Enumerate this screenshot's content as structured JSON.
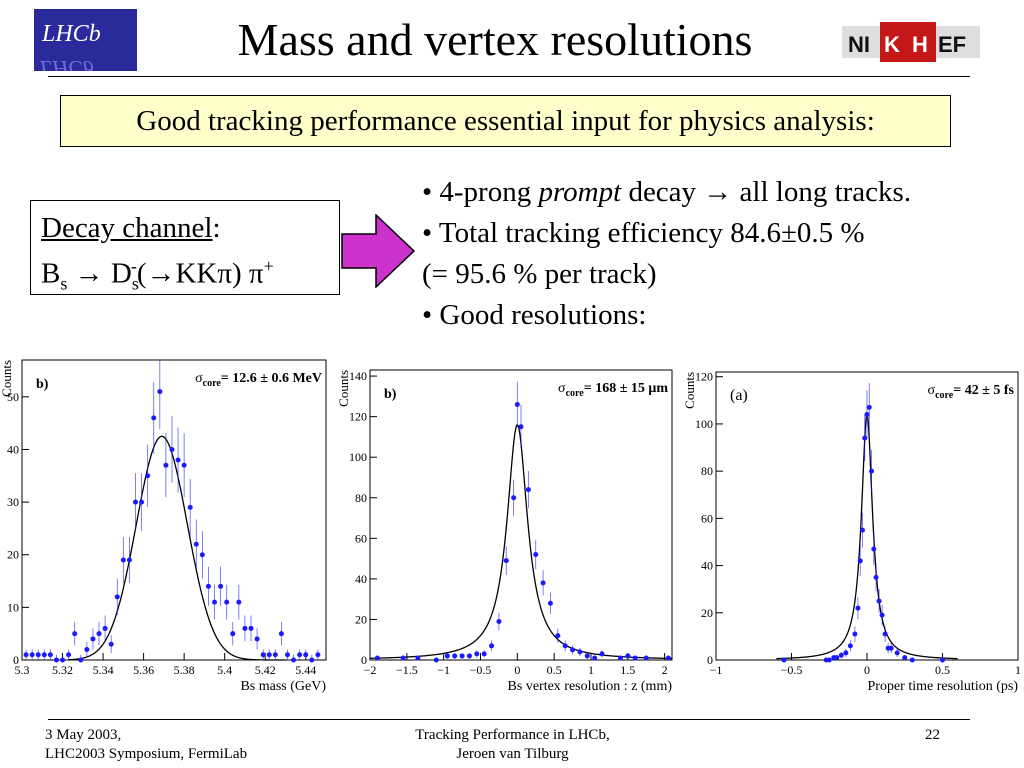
{
  "slide": {
    "title": "Mass and vertex resolutions",
    "highlight": "Good tracking performance essential input for physics analysis:",
    "logos": {
      "left": "LHCb",
      "right": "NIKHEF"
    },
    "decay_box": {
      "heading": "Decay channel",
      "heading_suffix": ":",
      "channel": {
        "b": "B",
        "b_sub": "s",
        "arrow": " → D",
        "ds_sub": "s",
        "ds_sup": "-",
        "rest": "(→KKπ) π",
        "pi_sup": "+"
      }
    },
    "bullets": [
      {
        "pre": "• 4-prong ",
        "em": "prompt",
        "post": " decay → all long tracks."
      },
      {
        "text": "• Total tracking efficiency 84.6±0.5 %"
      },
      {
        "text": " (= 95.6 % per track)"
      },
      {
        "text": "• Good resolutions:"
      }
    ],
    "arrow_color": "#cc33cc"
  },
  "footer": {
    "left_line1": "3 May 2003,",
    "left_line2": "LHC2003 Symposium, FermiLab",
    "center_line1": "Tracking Performance in LHCb,",
    "center_line2": "Jeroen van Tilburg",
    "page": "22"
  },
  "chart_data": [
    {
      "type": "scatter",
      "panel_label": "b)",
      "annotation": {
        "sigma": "σ",
        "sub": "core",
        "rest": "= 12.6 ± 0.6 MeV"
      },
      "xlabel": "Bs mass (GeV)",
      "ylabel": "Counts",
      "xlim": [
        5.3,
        5.45
      ],
      "ylim": [
        0,
        57
      ],
      "xticks": [
        5.3,
        5.32,
        5.34,
        5.36,
        5.38,
        5.4,
        5.42,
        5.44
      ],
      "xtick_labels": [
        "5.3",
        "5.32",
        "5.34",
        "5.36",
        "5.38",
        "5.4",
        "5.42",
        "5.44"
      ],
      "yticks": [
        0,
        10,
        20,
        30,
        40,
        50
      ],
      "ytick_labels": [
        "0",
        "10",
        "20",
        "30",
        "40",
        "50"
      ],
      "marker_color": "#1a1aff",
      "fit": {
        "model": "gaussian",
        "amplitude": 42.5,
        "mean": 5.369,
        "sigma": 0.0126,
        "range": [
          5.323,
          5.43
        ]
      },
      "points": [
        [
          5.302,
          1
        ],
        [
          5.305,
          1
        ],
        [
          5.308,
          1
        ],
        [
          5.311,
          1
        ],
        [
          5.314,
          1
        ],
        [
          5.317,
          0
        ],
        [
          5.32,
          0
        ],
        [
          5.323,
          1
        ],
        [
          5.326,
          5
        ],
        [
          5.329,
          0
        ],
        [
          5.332,
          2
        ],
        [
          5.335,
          4
        ],
        [
          5.338,
          5
        ],
        [
          5.341,
          6
        ],
        [
          5.344,
          3
        ],
        [
          5.347,
          12
        ],
        [
          5.35,
          19
        ],
        [
          5.353,
          19
        ],
        [
          5.356,
          30
        ],
        [
          5.359,
          30
        ],
        [
          5.362,
          35
        ],
        [
          5.365,
          46
        ],
        [
          5.368,
          51
        ],
        [
          5.371,
          37
        ],
        [
          5.374,
          40
        ],
        [
          5.377,
          38
        ],
        [
          5.38,
          37
        ],
        [
          5.383,
          29
        ],
        [
          5.386,
          22
        ],
        [
          5.389,
          20
        ],
        [
          5.392,
          14
        ],
        [
          5.395,
          11
        ],
        [
          5.398,
          14
        ],
        [
          5.401,
          11
        ],
        [
          5.404,
          5
        ],
        [
          5.407,
          11
        ],
        [
          5.41,
          6
        ],
        [
          5.413,
          6
        ],
        [
          5.416,
          4
        ],
        [
          5.419,
          1
        ],
        [
          5.422,
          1
        ],
        [
          5.425,
          1
        ],
        [
          5.428,
          5
        ],
        [
          5.431,
          1
        ],
        [
          5.434,
          0
        ],
        [
          5.437,
          1
        ],
        [
          5.44,
          1
        ],
        [
          5.443,
          0
        ],
        [
          5.446,
          1
        ]
      ]
    },
    {
      "type": "scatter",
      "panel_label": "b)",
      "annotation": {
        "sigma": "σ",
        "sub": "core",
        "rest": "= 168 ± 15 μm"
      },
      "xlabel": "Bs vertex resolution : z (mm)",
      "ylabel": "Counts",
      "xlim": [
        -2,
        2.1
      ],
      "ylim": [
        0,
        143
      ],
      "xticks": [
        -2,
        -1.5,
        -1,
        -0.5,
        0,
        0.5,
        1,
        1.5,
        2
      ],
      "xtick_labels": [
        "−2",
        "−1.5",
        "−1",
        "−0.5",
        "0",
        "0.5",
        "1",
        "1.5",
        "2"
      ],
      "yticks": [
        0,
        20,
        40,
        60,
        80,
        100,
        120,
        140
      ],
      "ytick_labels": [
        "0",
        "20",
        "40",
        "60",
        "80",
        "100",
        "120",
        "140"
      ],
      "marker_color": "#1a1aff",
      "fit": {
        "model": "lorentzian",
        "amplitude": 116,
        "mean": 0,
        "gamma": 0.17,
        "range": [
          -2,
          2.1
        ]
      },
      "points": [
        [
          -1.9,
          1
        ],
        [
          -1.55,
          1
        ],
        [
          -1.35,
          1
        ],
        [
          -1.1,
          0
        ],
        [
          -0.95,
          2
        ],
        [
          -0.85,
          2
        ],
        [
          -0.75,
          2
        ],
        [
          -0.65,
          2
        ],
        [
          -0.55,
          3
        ],
        [
          -0.45,
          3
        ],
        [
          -0.35,
          7
        ],
        [
          -0.25,
          19
        ],
        [
          -0.15,
          49
        ],
        [
          -0.05,
          80
        ],
        [
          0.0,
          126
        ],
        [
          0.05,
          115
        ],
        [
          0.15,
          84
        ],
        [
          0.25,
          52
        ],
        [
          0.35,
          38
        ],
        [
          0.45,
          28
        ],
        [
          0.55,
          12
        ],
        [
          0.65,
          7
        ],
        [
          0.75,
          5
        ],
        [
          0.85,
          4
        ],
        [
          0.95,
          2
        ],
        [
          1.05,
          1
        ],
        [
          1.15,
          3
        ],
        [
          1.4,
          1
        ],
        [
          1.5,
          2
        ],
        [
          1.6,
          1
        ],
        [
          1.75,
          1
        ],
        [
          2.05,
          1
        ]
      ]
    },
    {
      "type": "scatter",
      "panel_label": "(a)",
      "annotation": {
        "sigma": "σ",
        "sub": "core",
        "rest": "= 42 ± 5 fs"
      },
      "xlabel": "Proper time resolution (ps)",
      "ylabel": "Counts",
      "xlim": [
        -1,
        1
      ],
      "ylim": [
        0,
        122
      ],
      "xticks": [
        -1,
        -0.5,
        0,
        0.5,
        1
      ],
      "xtick_labels": [
        "−1",
        "−0.5",
        "0",
        "0.5",
        "1"
      ],
      "yticks": [
        0,
        20,
        40,
        60,
        80,
        100,
        120
      ],
      "ytick_labels": [
        "0",
        "20",
        "40",
        "60",
        "80",
        "100",
        "120"
      ],
      "marker_color": "#1a1aff",
      "fit": {
        "model": "lorentzian",
        "amplitude": 104,
        "mean": 0,
        "gamma": 0.045,
        "range": [
          -0.6,
          0.6
        ]
      },
      "points": [
        [
          -0.55,
          0
        ],
        [
          -0.27,
          0
        ],
        [
          -0.25,
          0
        ],
        [
          -0.22,
          1
        ],
        [
          -0.2,
          1
        ],
        [
          -0.17,
          2
        ],
        [
          -0.14,
          3
        ],
        [
          -0.11,
          6
        ],
        [
          -0.08,
          11
        ],
        [
          -0.06,
          22
        ],
        [
          -0.045,
          42
        ],
        [
          -0.03,
          55
        ],
        [
          -0.015,
          94
        ],
        [
          0.0,
          104
        ],
        [
          0.015,
          107
        ],
        [
          0.03,
          80
        ],
        [
          0.045,
          47
        ],
        [
          0.06,
          35
        ],
        [
          0.08,
          25
        ],
        [
          0.1,
          19
        ],
        [
          0.12,
          11
        ],
        [
          0.14,
          5
        ],
        [
          0.16,
          5
        ],
        [
          0.2,
          3
        ],
        [
          0.25,
          1
        ],
        [
          0.3,
          0
        ],
        [
          0.5,
          0
        ]
      ]
    }
  ]
}
